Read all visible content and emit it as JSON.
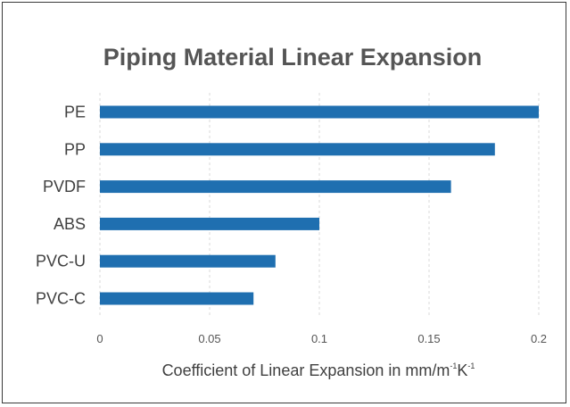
{
  "chart_data": {
    "type": "bar",
    "orientation": "horizontal",
    "title": "Piping Material Linear Expansion",
    "categories": [
      "PE",
      "PP",
      "PVDF",
      "ABS",
      "PVC-U",
      "PVC-C"
    ],
    "values": [
      0.2,
      0.18,
      0.16,
      0.1,
      0.08,
      0.07
    ],
    "xlabel": {
      "main": "Coefficient of Linear Expansion in mm/m",
      "sup1": "-1",
      "unit2": "K",
      "sup2": "-1"
    },
    "ylabel": "",
    "xlim": [
      0,
      0.2
    ],
    "xticks": [
      0,
      0.05,
      0.1,
      0.15,
      0.2
    ],
    "xtick_labels": [
      "0",
      "0.05",
      "0.1",
      "0.15",
      "0.2"
    ],
    "grid": "vertical dashed",
    "legend": "none",
    "bar_color": "#1f6fb0",
    "grid_color": "#d9d9d9"
  }
}
